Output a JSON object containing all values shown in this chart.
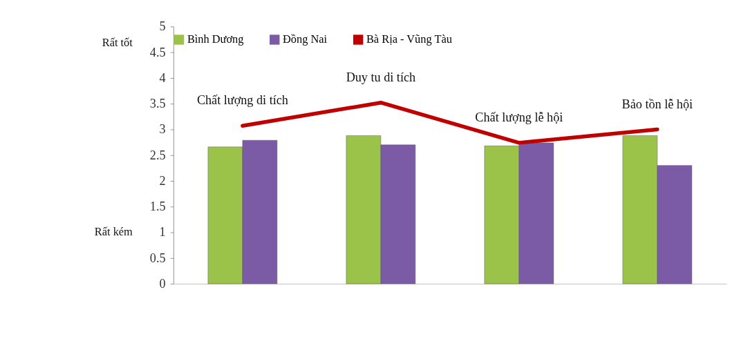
{
  "chart_data": {
    "type": "bar",
    "categories": [
      "Chất lượng di tích",
      "Duy tu di tích",
      "Chất lượng lễ hội",
      "Bảo tồn lễ hội"
    ],
    "series": [
      {
        "name": "Bình Dương",
        "color": "#9bc34a",
        "values": [
          2.66,
          2.88,
          2.68,
          2.88
        ]
      },
      {
        "name": "Đồng Nai",
        "color": "#7b5aa6",
        "values": [
          2.79,
          2.7,
          2.74,
          2.3
        ]
      },
      {
        "name": "Bà Rịa - Vũng Tàu",
        "color": "#c00000",
        "type": "line",
        "values": [
          3.07,
          3.52,
          2.74,
          3.0
        ]
      }
    ],
    "ylim": [
      0,
      5
    ],
    "yticks": [
      0,
      0.5,
      1,
      1.5,
      2,
      2.5,
      3,
      3.5,
      4,
      4.5,
      5
    ],
    "annotations": [
      "Rất tốt",
      "Rất kém"
    ],
    "legend": "top",
    "grid": false,
    "marker": "none",
    "line_style": "solid"
  }
}
